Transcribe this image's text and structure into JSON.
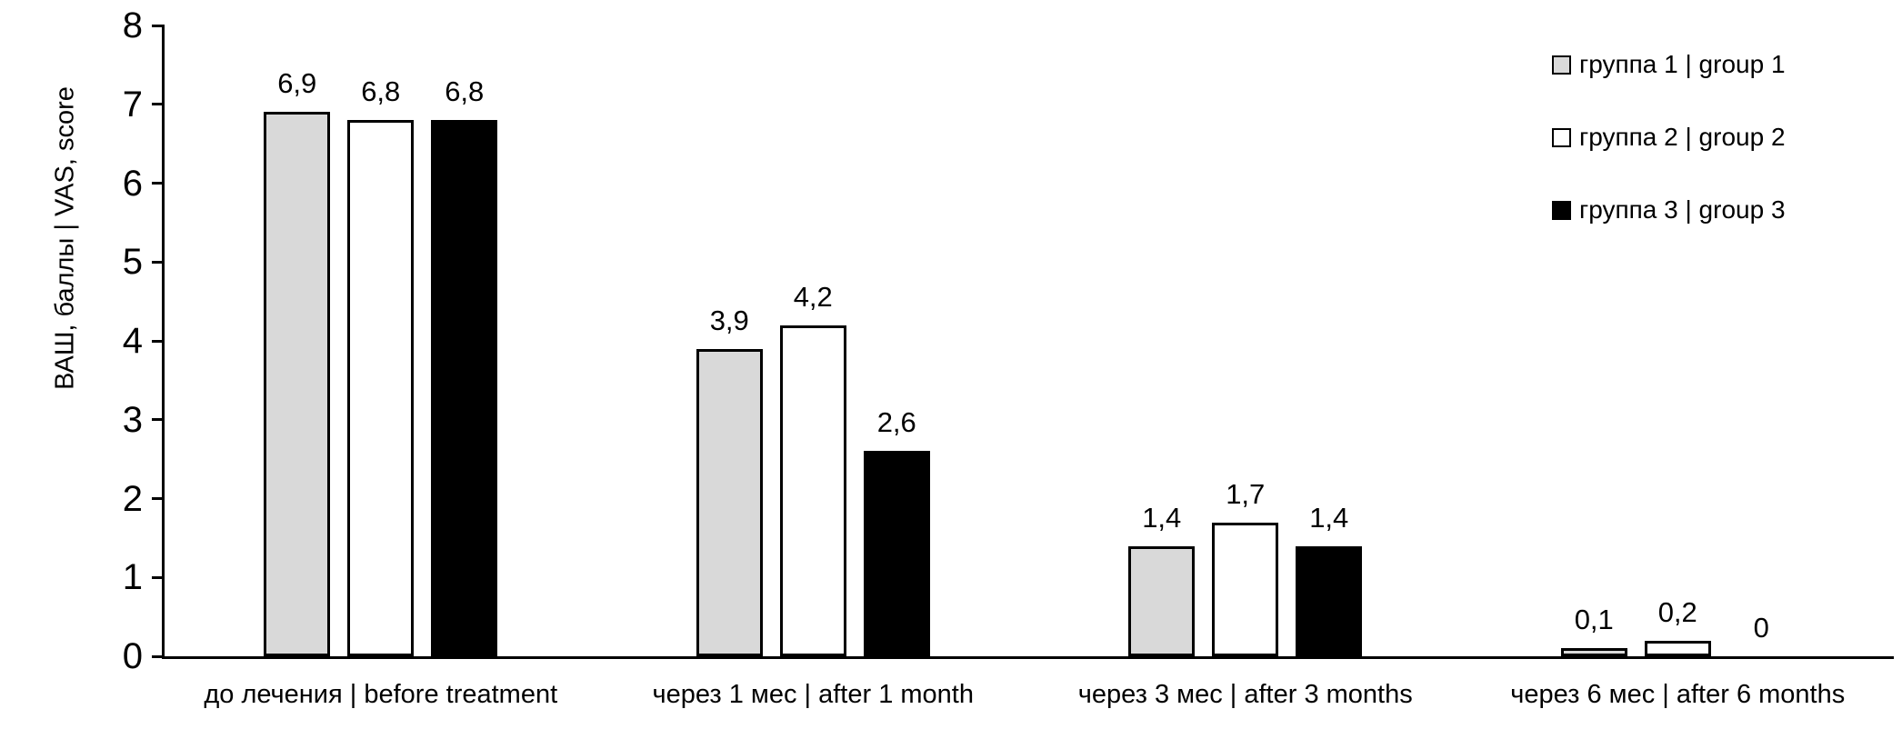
{
  "chart_data": {
    "type": "bar",
    "title": "",
    "ylabel": "ВАШ, баллы | VAS, score",
    "xlabel": "",
    "ylim": [
      0,
      8
    ],
    "ytick_step": 1,
    "grid": false,
    "legend_position": "top-right",
    "decimal_separator": ",",
    "background_color": "#ffffff",
    "axis_color": "#000000",
    "categories": [
      "до лечения | before treatment",
      "через 1 мес | after 1 month",
      "через 3 мес | after 3 months",
      "через 6 мес | after 6 months"
    ],
    "y_tick_labels": [
      "0",
      "1",
      "2",
      "3",
      "4",
      "5",
      "6",
      "7",
      "8"
    ],
    "series": [
      {
        "name": "группа 1 | group 1",
        "fill": "#d9d9d9",
        "border": "#000000",
        "values": [
          6.9,
          3.9,
          1.4,
          0.1
        ],
        "value_labels": [
          "6,9",
          "3,9",
          "1,4",
          "0,1"
        ]
      },
      {
        "name": "группа 2 | group 2",
        "fill": "#ffffff",
        "border": "#000000",
        "values": [
          6.8,
          4.2,
          1.7,
          0.2
        ],
        "value_labels": [
          "6,8",
          "4,2",
          "1,7",
          "0,2"
        ]
      },
      {
        "name": "группа 3 | group 3",
        "fill": "#000000",
        "border": "#000000",
        "values": [
          6.8,
          2.6,
          1.4,
          0
        ],
        "value_labels": [
          "6,8",
          "2,6",
          "1,4",
          "0"
        ]
      }
    ]
  }
}
